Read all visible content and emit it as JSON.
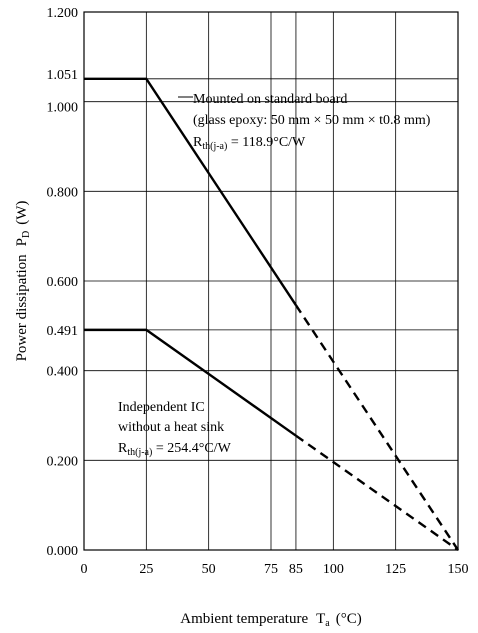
{
  "chart_data": {
    "type": "line",
    "xlabel": "Ambient temperature",
    "xlabel_symbol": "T",
    "xlabel_sub": "a",
    "xlabel_unit": "(°C)",
    "ylabel": "Power dissipation",
    "ylabel_symbol": "P",
    "ylabel_sub": "D",
    "ylabel_unit": "(W)",
    "xlim": [
      0,
      150
    ],
    "ylim": [
      0,
      1.2
    ],
    "x_ticks": [
      0,
      25,
      50,
      75,
      85,
      100,
      125,
      150
    ],
    "x_tick_labels": [
      "0",
      "25",
      "50",
      "75",
      "85",
      "100",
      "125",
      "150"
    ],
    "y_ticks": [
      0,
      0.2,
      0.4,
      0.491,
      0.6,
      0.8,
      1.0,
      1.051,
      1.2
    ],
    "y_tick_labels": [
      "0.000",
      "0.200",
      "0.400",
      "0.491",
      "0.600",
      "0.800",
      "1.000",
      "1.051",
      "1.200"
    ],
    "grid": true,
    "series": [
      {
        "name": "Mounted on standard board",
        "solid": {
          "x": [
            0,
            25,
            85
          ],
          "y": [
            1.051,
            1.051,
            0.546
          ]
        },
        "dashed": {
          "x": [
            85,
            150
          ],
          "y": [
            0.546,
            0
          ]
        }
      },
      {
        "name": "Independent IC without a heat sink",
        "solid": {
          "x": [
            0,
            25,
            85
          ],
          "y": [
            0.491,
            0.491,
            0.255
          ]
        },
        "dashed": {
          "x": [
            85,
            150
          ],
          "y": [
            0.255,
            0
          ]
        }
      }
    ],
    "annotations": {
      "board_line1": "Mounted on standard board",
      "board_line2": "(glass epoxy: 50 mm × 50 mm × t0.8 mm)",
      "board_rth_symbol": "R",
      "board_rth_sub": "th(j-a)",
      "board_rth_value": " = 118.9°C/W",
      "ic_line1": "Independent IC",
      "ic_line2": "without a heat sink",
      "ic_rth_symbol": "R",
      "ic_rth_sub": "th(j-a)",
      "ic_rth_value": " = 254.4°C/W"
    }
  }
}
